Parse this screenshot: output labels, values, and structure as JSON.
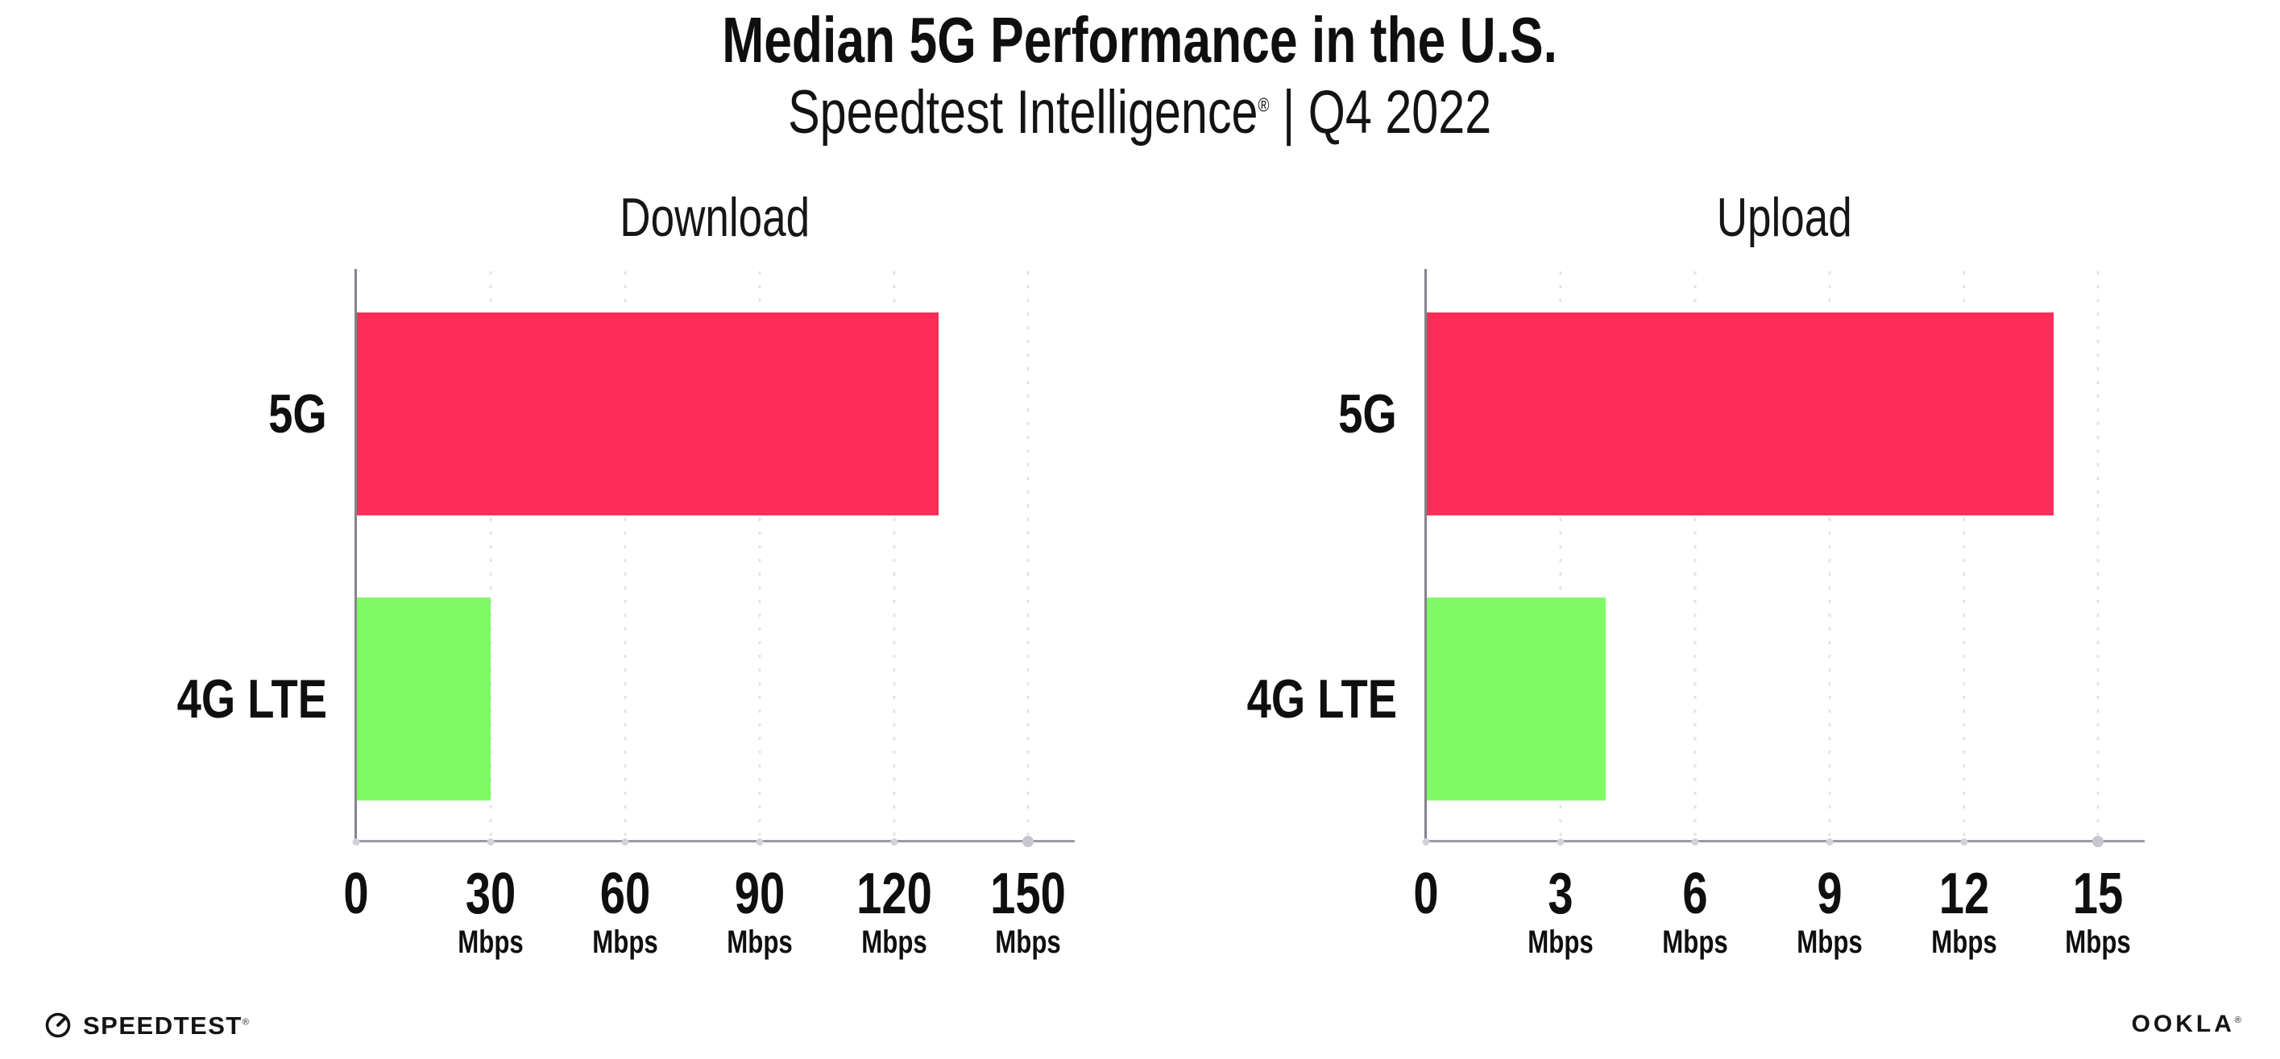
{
  "header": {
    "title": "Median 5G Performance in the U.S.",
    "subtitle": {
      "brand": "Speedtest Intelligence",
      "reg": "®",
      "rest": " | Q4 2022"
    }
  },
  "colors": {
    "bar_5g": "#ff2d58",
    "bar_4g": "#80fb66",
    "grid": "#e3e3eb",
    "x_axis_line": "#9b9ba2",
    "y_axis_line": "#84848b",
    "tick_dot": "#d2d2da",
    "text": "#0f0f0f"
  },
  "chart_data": [
    {
      "type": "bar",
      "orientation": "horizontal",
      "title": "Download",
      "categories": [
        "5G",
        "4G LTE"
      ],
      "values": [
        130,
        30
      ],
      "unit": "Mbps",
      "xlim": [
        0,
        160
      ],
      "xticks": [
        0,
        30,
        60,
        90,
        120,
        150
      ],
      "grid": "dotted-vertical",
      "legend": "none",
      "bar_color_keys": [
        "bar_5g",
        "bar_4g"
      ]
    },
    {
      "type": "bar",
      "orientation": "horizontal",
      "title": "Upload",
      "categories": [
        "5G",
        "4G LTE"
      ],
      "values": [
        14,
        4
      ],
      "unit": "Mbps",
      "xlim": [
        0,
        16
      ],
      "xticks": [
        0,
        3,
        6,
        9,
        12,
        15
      ],
      "grid": "dotted-vertical",
      "legend": "none",
      "bar_color_keys": [
        "bar_5g",
        "bar_4g"
      ]
    }
  ],
  "footer": {
    "speedtest_logo": "SPEEDTEST",
    "speedtest_reg": "®",
    "ookla_logo": "OOKLA",
    "ookla_reg": "®"
  }
}
